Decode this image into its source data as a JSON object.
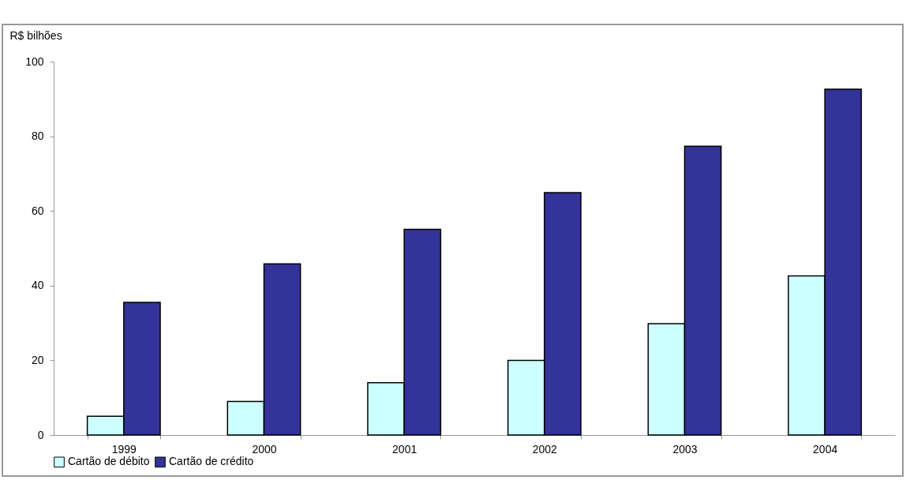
{
  "chart_data": {
    "type": "bar",
    "ylabel": "R$ bilhões",
    "categories": [
      "1999",
      "2000",
      "2001",
      "2002",
      "2003",
      "2004"
    ],
    "series": [
      {
        "name": "Cartão de débito",
        "color": "#ccffff",
        "values": [
          5,
          9,
          14,
          20,
          29.8,
          42.6
        ]
      },
      {
        "name": "Cartão de crédito",
        "color": "#333399",
        "values": [
          35.5,
          45.8,
          55.1,
          64.9,
          77.3,
          92.6
        ]
      }
    ],
    "ylim": [
      0,
      100
    ],
    "yticks": [
      0,
      20,
      40,
      60,
      80,
      100
    ],
    "grid": false,
    "legend": "bottom"
  }
}
